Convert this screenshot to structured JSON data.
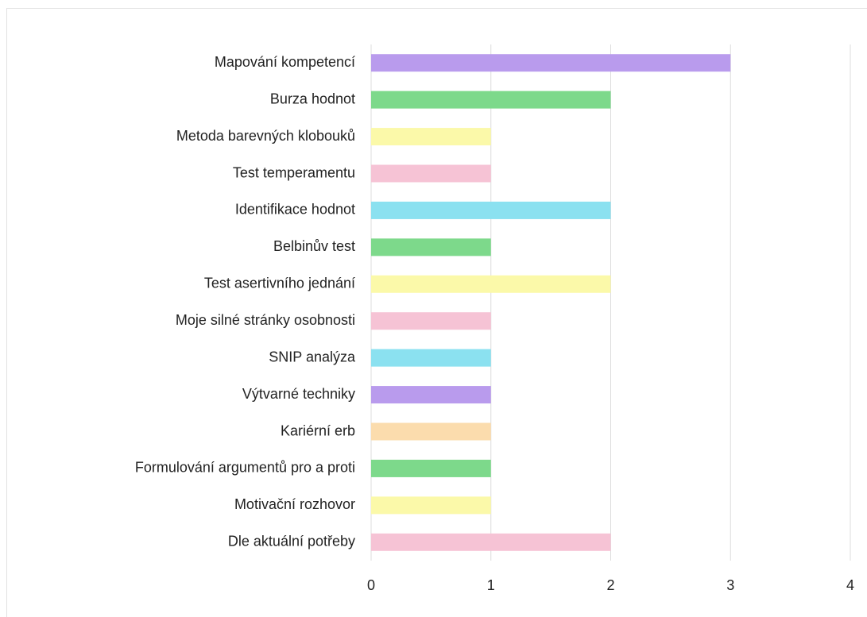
{
  "chart_data": {
    "type": "bar",
    "orientation": "horizontal",
    "categories": [
      "Mapování kompetencí",
      "Burza hodnot",
      "Metoda barevných klobouků",
      "Test temperamentu",
      "Identifikace hodnot",
      "Belbinův test",
      "Test asertivního jednání",
      "Moje silné stránky osobnosti",
      "SNIP analýza",
      "Výtvarné techniky",
      "Kariérní erb",
      "Formulování argumentů pro a proti",
      "Motivační rozhovor",
      "Dle aktuální potřeby"
    ],
    "values": [
      3,
      2,
      1,
      1,
      2,
      1,
      2,
      1,
      1,
      1,
      1,
      1,
      1,
      2
    ],
    "colors": [
      "#b99bed",
      "#7dd98b",
      "#fbf9a9",
      "#f6c3d5",
      "#8be1f0",
      "#7dd98b",
      "#fbf9a9",
      "#f6c3d5",
      "#8be1f0",
      "#b99bed",
      "#fbdcad",
      "#7dd98b",
      "#fbf9a9",
      "#f6c3d5"
    ],
    "xlim": [
      0,
      4
    ],
    "xticks": [
      0,
      1,
      2,
      3,
      4
    ],
    "grid": true
  }
}
